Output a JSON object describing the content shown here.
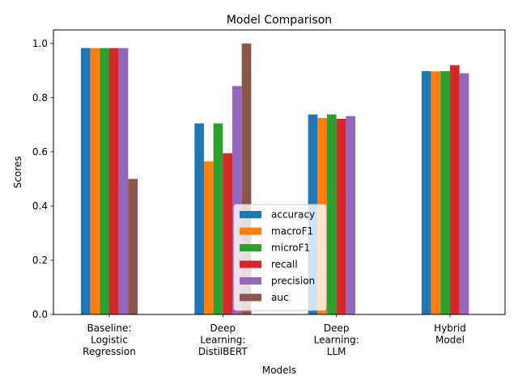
{
  "chart_data": {
    "type": "bar",
    "title": "Model Comparison",
    "xlabel": "Models",
    "ylabel": "Scores",
    "ylim": [
      0,
      1.05
    ],
    "yticks": [
      "0.0",
      "0.2",
      "0.4",
      "0.6",
      "0.8",
      "1.0"
    ],
    "ytick_values": [
      0,
      0.2,
      0.4,
      0.6,
      0.8,
      1.0
    ],
    "grid": false,
    "legend_position": "lower center",
    "categories": [
      [
        "Baseline:",
        "Logistic",
        "Regression"
      ],
      [
        "Deep",
        "Learning:",
        "DistilBERT"
      ],
      [
        "Deep",
        "Learning:",
        "LLM"
      ],
      [
        "Hybrid",
        "Model"
      ]
    ],
    "series": [
      {
        "name": "accuracy",
        "color": "#1f77b4",
        "values": [
          0.983,
          0.705,
          0.738,
          0.898
        ]
      },
      {
        "name": "macroF1",
        "color": "#ff7f0e",
        "values": [
          0.983,
          0.565,
          0.725,
          0.897
        ]
      },
      {
        "name": "microF1",
        "color": "#2ca02c",
        "values": [
          0.983,
          0.705,
          0.738,
          0.898
        ]
      },
      {
        "name": "recall",
        "color": "#d62728",
        "values": [
          0.983,
          0.595,
          0.722,
          0.92
        ]
      },
      {
        "name": "precision",
        "color": "#9467bd",
        "values": [
          0.983,
          0.843,
          0.732,
          0.89
        ]
      },
      {
        "name": "auc",
        "color": "#8c564b",
        "values": [
          0.5,
          1.0,
          null,
          null
        ]
      }
    ]
  }
}
